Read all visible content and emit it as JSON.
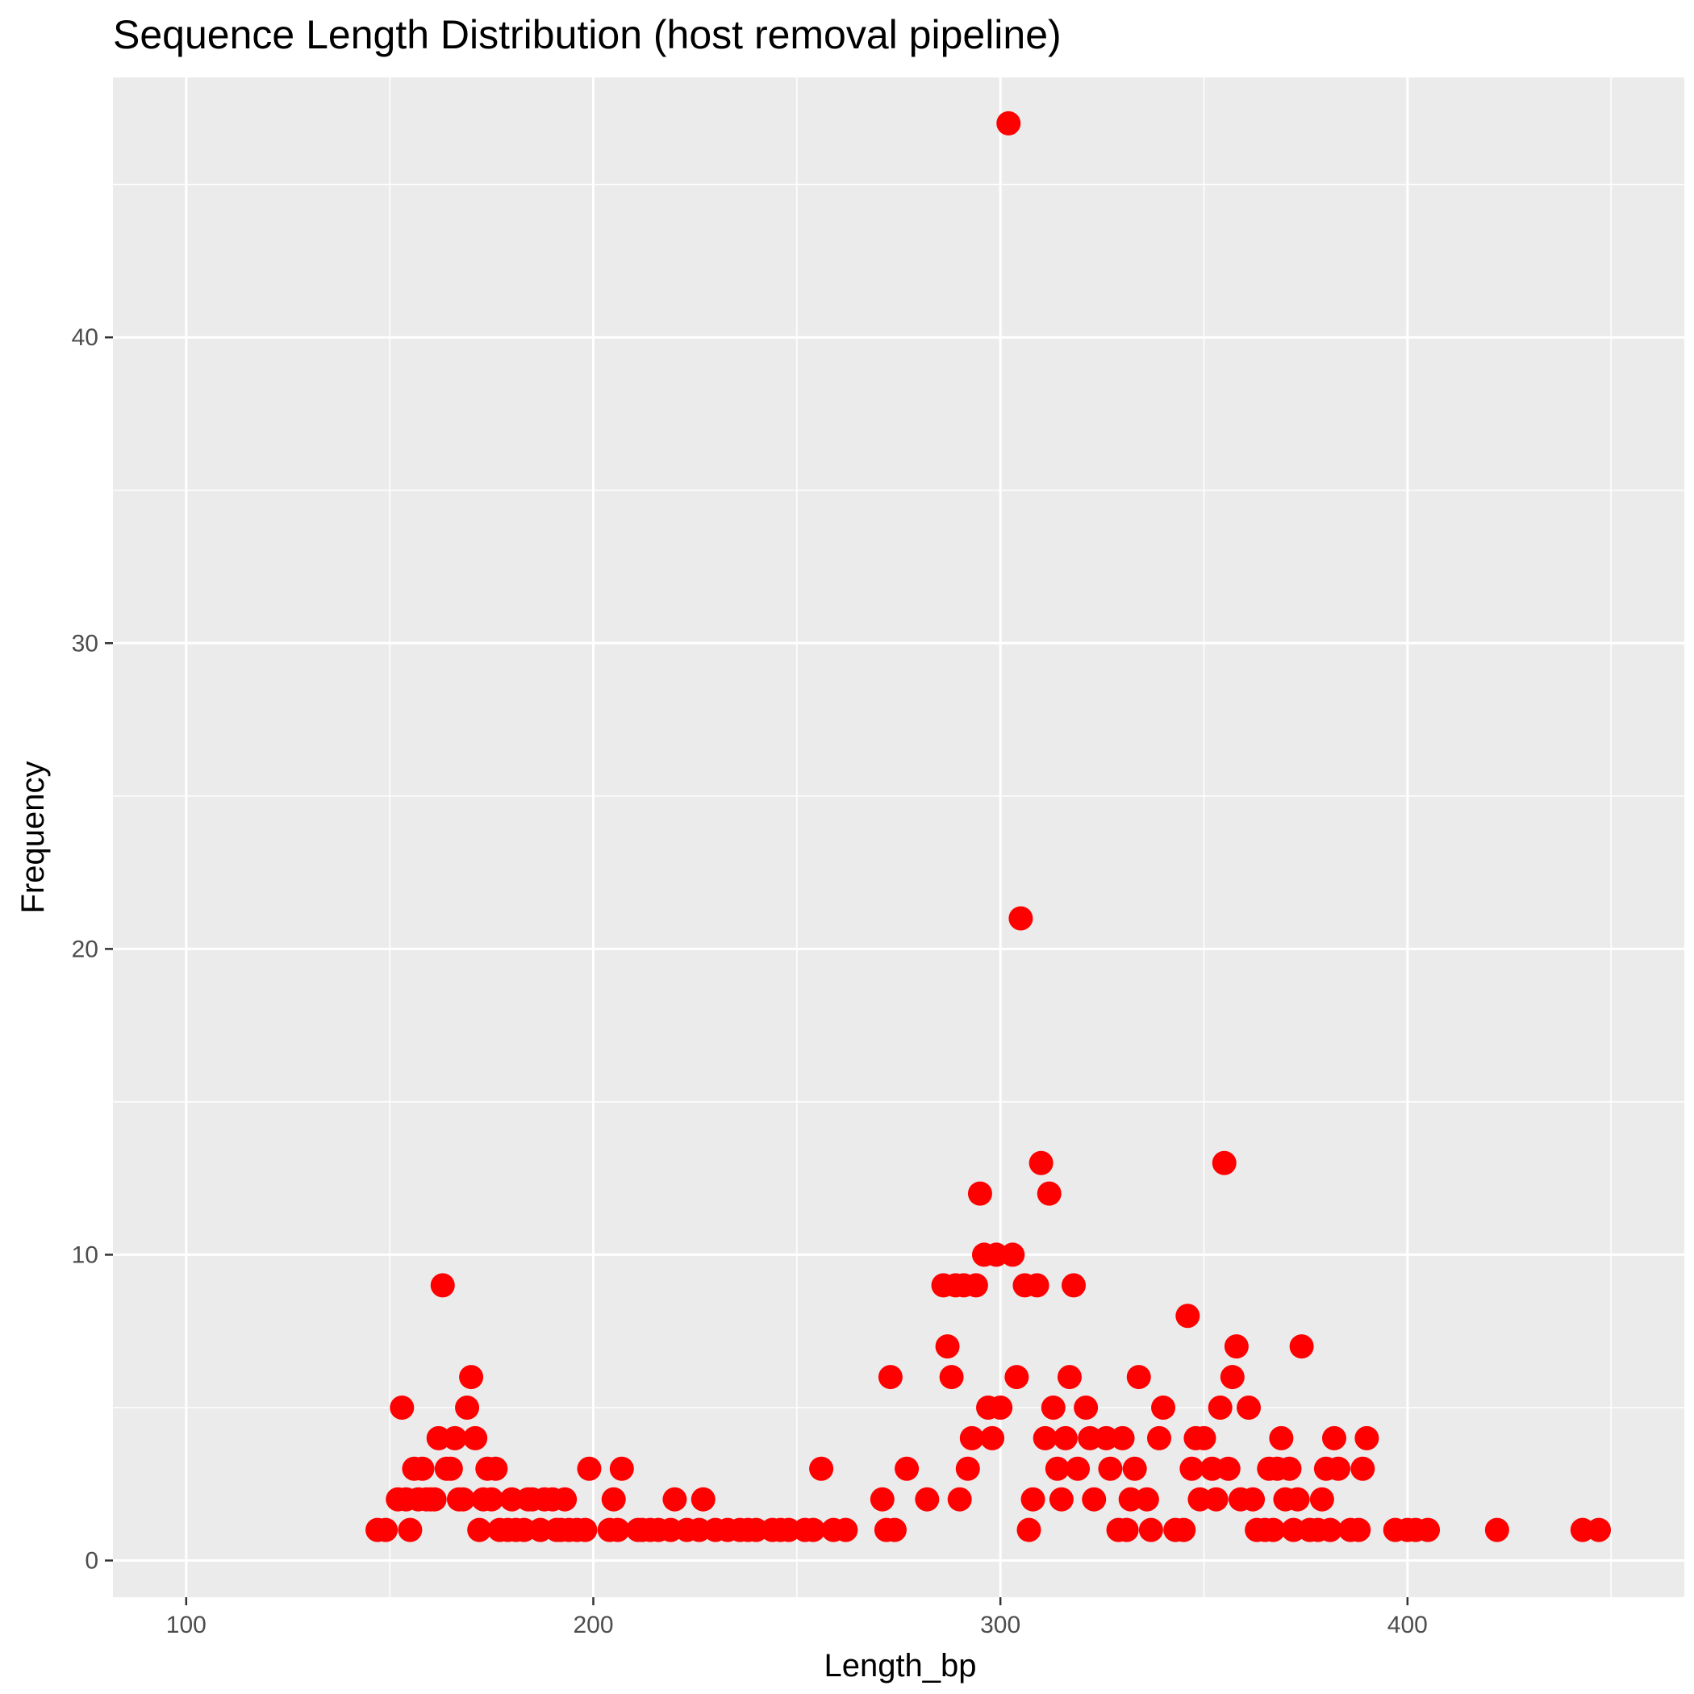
{
  "chart_data": {
    "type": "scatter",
    "title": "Sequence Length Distribution (host removal pipeline)",
    "xlabel": "Length_bp",
    "ylabel": "Frequency",
    "xlim": [
      82,
      468
    ],
    "ylim": [
      -1.2,
      48.5
    ],
    "x_ticks": [
      100,
      200,
      300,
      400
    ],
    "y_ticks": [
      0,
      10,
      20,
      30,
      40
    ],
    "grid": true,
    "legend": "none",
    "colors": {
      "panel": "#ebebeb",
      "grid": "#ffffff",
      "point": "#ff0000",
      "tick": "#333333"
    },
    "series": [
      {
        "points": [
          [
            147,
            1
          ],
          [
            149,
            1
          ],
          [
            152,
            2
          ],
          [
            153,
            5
          ],
          [
            154,
            2
          ],
          [
            155,
            1
          ],
          [
            156,
            3
          ],
          [
            157,
            2
          ],
          [
            158,
            3
          ],
          [
            159,
            2
          ],
          [
            160,
            2
          ],
          [
            161,
            2
          ],
          [
            162,
            4
          ],
          [
            163,
            9
          ],
          [
            164,
            3
          ],
          [
            165,
            3
          ],
          [
            166,
            4
          ],
          [
            167,
            2
          ],
          [
            168,
            2
          ],
          [
            169,
            5
          ],
          [
            170,
            6
          ],
          [
            171,
            4
          ],
          [
            172,
            1
          ],
          [
            173,
            2
          ],
          [
            174,
            3
          ],
          [
            175,
            2
          ],
          [
            176,
            3
          ],
          [
            177,
            1
          ],
          [
            179,
            1
          ],
          [
            180,
            2
          ],
          [
            181,
            1
          ],
          [
            183,
            1
          ],
          [
            184,
            2
          ],
          [
            185,
            2
          ],
          [
            187,
            1
          ],
          [
            188,
            2
          ],
          [
            190,
            2
          ],
          [
            191,
            1
          ],
          [
            192,
            1
          ],
          [
            193,
            2
          ],
          [
            194,
            1
          ],
          [
            196,
            1
          ],
          [
            198,
            1
          ],
          [
            199,
            3
          ],
          [
            204,
            1
          ],
          [
            205,
            2
          ],
          [
            206,
            1
          ],
          [
            207,
            3
          ],
          [
            211,
            1
          ],
          [
            212,
            1
          ],
          [
            214,
            1
          ],
          [
            216,
            1
          ],
          [
            219,
            1
          ],
          [
            220,
            2
          ],
          [
            223,
            1
          ],
          [
            226,
            1
          ],
          [
            227,
            2
          ],
          [
            230,
            1
          ],
          [
            233,
            1
          ],
          [
            236,
            1
          ],
          [
            238,
            1
          ],
          [
            240,
            1
          ],
          [
            244,
            1
          ],
          [
            246,
            1
          ],
          [
            248,
            1
          ],
          [
            252,
            1
          ],
          [
            254,
            1
          ],
          [
            256,
            3
          ],
          [
            259,
            1
          ],
          [
            262,
            1
          ],
          [
            271,
            2
          ],
          [
            272,
            1
          ],
          [
            273,
            6
          ],
          [
            274,
            1
          ],
          [
            277,
            3
          ],
          [
            282,
            2
          ],
          [
            286,
            9
          ],
          [
            287,
            7
          ],
          [
            288,
            6
          ],
          [
            289,
            9
          ],
          [
            290,
            2
          ],
          [
            291,
            9
          ],
          [
            292,
            3
          ],
          [
            293,
            4
          ],
          [
            294,
            9
          ],
          [
            295,
            12
          ],
          [
            296,
            10
          ],
          [
            297,
            5
          ],
          [
            298,
            4
          ],
          [
            299,
            10
          ],
          [
            300,
            5
          ],
          [
            302,
            47
          ],
          [
            303,
            10
          ],
          [
            304,
            6
          ],
          [
            305,
            21
          ],
          [
            306,
            9
          ],
          [
            307,
            1
          ],
          [
            308,
            2
          ],
          [
            309,
            9
          ],
          [
            310,
            13
          ],
          [
            311,
            4
          ],
          [
            312,
            12
          ],
          [
            313,
            5
          ],
          [
            314,
            3
          ],
          [
            315,
            2
          ],
          [
            316,
            4
          ],
          [
            317,
            6
          ],
          [
            318,
            9
          ],
          [
            319,
            3
          ],
          [
            321,
            5
          ],
          [
            322,
            4
          ],
          [
            323,
            2
          ],
          [
            326,
            4
          ],
          [
            327,
            3
          ],
          [
            329,
            1
          ],
          [
            330,
            4
          ],
          [
            331,
            1
          ],
          [
            332,
            2
          ],
          [
            333,
            3
          ],
          [
            334,
            6
          ],
          [
            336,
            2
          ],
          [
            337,
            1
          ],
          [
            339,
            4
          ],
          [
            340,
            5
          ],
          [
            343,
            1
          ],
          [
            345,
            1
          ],
          [
            346,
            8
          ],
          [
            347,
            3
          ],
          [
            348,
            4
          ],
          [
            349,
            2
          ],
          [
            350,
            4
          ],
          [
            352,
            3
          ],
          [
            353,
            2
          ],
          [
            354,
            5
          ],
          [
            355,
            13
          ],
          [
            356,
            3
          ],
          [
            357,
            6
          ],
          [
            358,
            7
          ],
          [
            359,
            2
          ],
          [
            361,
            5
          ],
          [
            362,
            2
          ],
          [
            363,
            1
          ],
          [
            365,
            1
          ],
          [
            366,
            3
          ],
          [
            367,
            1
          ],
          [
            368,
            3
          ],
          [
            369,
            4
          ],
          [
            370,
            2
          ],
          [
            371,
            3
          ],
          [
            372,
            1
          ],
          [
            373,
            2
          ],
          [
            374,
            7
          ],
          [
            376,
            1
          ],
          [
            378,
            1
          ],
          [
            379,
            2
          ],
          [
            380,
            3
          ],
          [
            381,
            1
          ],
          [
            382,
            4
          ],
          [
            383,
            3
          ],
          [
            386,
            1
          ],
          [
            388,
            1
          ],
          [
            389,
            3
          ],
          [
            390,
            4
          ],
          [
            397,
            1
          ],
          [
            400,
            1
          ],
          [
            402,
            1
          ],
          [
            405,
            1
          ],
          [
            422,
            1
          ],
          [
            443,
            1
          ],
          [
            447,
            1
          ]
        ]
      }
    ]
  }
}
